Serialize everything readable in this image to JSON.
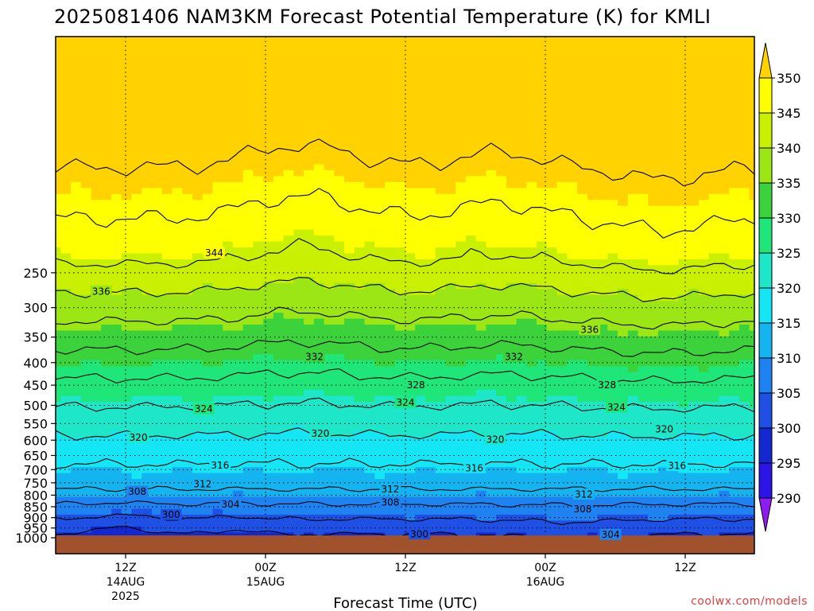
{
  "title": "2025081406 NAM3KM Forecast Potential Temperature (K) for KMLI",
  "credit": "coolwx.com/models",
  "chart_data": {
    "type": "heatmap",
    "title": "2025081406 NAM3KM Forecast Potential Temperature (K) for KMLI",
    "xlabel": "Forecast Time (UTC)",
    "ylabel": "",
    "y_axis_scale": "log-pressure, inverted",
    "ylim": [
      1000,
      200
    ],
    "y_ticks": [
      250,
      300,
      350,
      400,
      450,
      500,
      550,
      600,
      650,
      700,
      750,
      800,
      850,
      900,
      950,
      1000
    ],
    "xlim": [
      0,
      60
    ],
    "x_ticks": [
      {
        "hour": 6,
        "label": "12Z",
        "sub1": "14AUG",
        "sub2": "2025"
      },
      {
        "hour": 18,
        "label": "00Z",
        "sub1": "15AUG",
        "sub2": ""
      },
      {
        "hour": 30,
        "label": "12Z",
        "sub1": "",
        "sub2": ""
      },
      {
        "hour": 42,
        "label": "00Z",
        "sub1": "16AUG",
        "sub2": ""
      },
      {
        "hour": 54,
        "label": "12Z",
        "sub1": "",
        "sub2": ""
      }
    ],
    "grid": true,
    "colorbar": {
      "levels": [
        290,
        295,
        300,
        305,
        310,
        315,
        320,
        325,
        330,
        335,
        340,
        345,
        350
      ],
      "colors": [
        "#8c1cf0",
        "#2a14e6",
        "#1428d2",
        "#1e50e6",
        "#1e82f0",
        "#14b4f0",
        "#14e6f5",
        "#1ee6c8",
        "#1ee678",
        "#3cd23c",
        "#9be614",
        "#c8f000",
        "#ffff00",
        "#ffd200"
      ],
      "placement": "right"
    },
    "contour_interval": 4,
    "contour_labels": [
      {
        "value": 344,
        "hour": 13.6,
        "p": 225
      },
      {
        "value": 336,
        "hour": 3.9,
        "p": 275
      },
      {
        "value": 336,
        "hour": 45.8,
        "p": 336
      },
      {
        "value": 332,
        "hour": 22.2,
        "p": 387
      },
      {
        "value": 332,
        "hour": 39.3,
        "p": 387
      },
      {
        "value": 328,
        "hour": 30.9,
        "p": 449
      },
      {
        "value": 328,
        "hour": 47.3,
        "p": 449
      },
      {
        "value": 324,
        "hour": 12.7,
        "p": 509
      },
      {
        "value": 324,
        "hour": 30.0,
        "p": 492
      },
      {
        "value": 324,
        "hour": 48.1,
        "p": 504
      },
      {
        "value": 320,
        "hour": 7.1,
        "p": 591
      },
      {
        "value": 320,
        "hour": 22.7,
        "p": 578
      },
      {
        "value": 320,
        "hour": 37.7,
        "p": 597
      },
      {
        "value": 320,
        "hour": 52.2,
        "p": 565
      },
      {
        "value": 316,
        "hour": 14.1,
        "p": 683
      },
      {
        "value": 316,
        "hour": 35.9,
        "p": 693
      },
      {
        "value": 316,
        "hour": 53.3,
        "p": 685
      },
      {
        "value": 312,
        "hour": 12.6,
        "p": 753
      },
      {
        "value": 312,
        "hour": 28.7,
        "p": 774
      },
      {
        "value": 312,
        "hour": 45.3,
        "p": 795
      },
      {
        "value": 308,
        "hour": 7.0,
        "p": 784
      },
      {
        "value": 308,
        "hour": 28.7,
        "p": 829
      },
      {
        "value": 308,
        "hour": 45.2,
        "p": 859
      },
      {
        "value": 304,
        "hour": 15.0,
        "p": 838
      },
      {
        "value": 304,
        "hour": 47.6,
        "p": 982
      },
      {
        "value": 300,
        "hour": 9.9,
        "p": 885
      },
      {
        "value": 300,
        "hour": 31.2,
        "p": 979
      }
    ]
  }
}
